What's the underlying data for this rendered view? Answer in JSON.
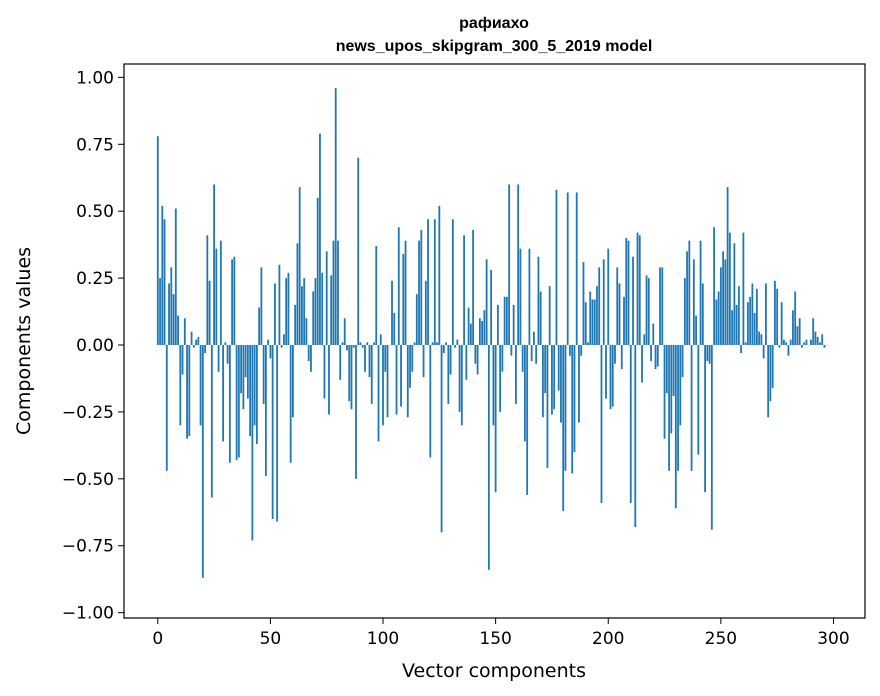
{
  "chart_data": {
    "type": "bar",
    "title": "рафиахо",
    "subtitle": "news_upos_skipgram_300_5_2019 model",
    "xlabel": "Vector components",
    "ylabel": "Components values",
    "xlim": [
      -15,
      314
    ],
    "ylim": [
      -1.02,
      1.05
    ],
    "xticks": [
      0,
      50,
      100,
      150,
      200,
      250,
      300
    ],
    "yticks": [
      -1.0,
      -0.75,
      -0.5,
      -0.25,
      0.0,
      0.25,
      0.5,
      0.75,
      1.0
    ],
    "ytick_labels": [
      "−1.00",
      "−0.75",
      "−0.50",
      "−0.25",
      "0.00",
      "0.25",
      "0.50",
      "0.75",
      "1.00"
    ],
    "bar_color": "#1f77b4",
    "values": [
      0.78,
      0.25,
      0.52,
      0.47,
      -0.47,
      0.23,
      0.29,
      0.19,
      0.51,
      0.11,
      -0.3,
      -0.11,
      0.1,
      -0.35,
      -0.34,
      0.05,
      -0.01,
      0.02,
      0.03,
      -0.3,
      -0.87,
      -0.03,
      0.41,
      0.24,
      -0.57,
      0.6,
      0.36,
      -0.1,
      0.39,
      -0.36,
      0.01,
      -0.07,
      -0.44,
      0.32,
      0.33,
      -0.43,
      -0.42,
      -0.18,
      -0.24,
      -0.12,
      -0.2,
      -0.34,
      -0.73,
      -0.3,
      -0.37,
      0.14,
      0.29,
      -0.22,
      -0.49,
      0.02,
      -0.05,
      -0.65,
      0.23,
      -0.66,
      0.3,
      -0.01,
      0.04,
      0.25,
      0.27,
      -0.44,
      -0.27,
      0.15,
      0.38,
      0.59,
      0.22,
      0.25,
      0.1,
      -0.06,
      -0.1,
      0.2,
      0.25,
      0.55,
      0.79,
      0.27,
      -0.2,
      0.35,
      -0.26,
      0.26,
      0.39,
      0.96,
      0.39,
      -0.13,
      0.01,
      0.1,
      -0.02,
      -0.21,
      -0.24,
      -0.01,
      -0.5,
      0.7,
      0.01,
      -0.01,
      -0.1,
      0.01,
      -0.12,
      -0.22,
      0.01,
      0.37,
      -0.36,
      0.04,
      -0.3,
      -0.1,
      -0.27,
      0.0,
      0.24,
      0.12,
      -0.26,
      0.44,
      -0.23,
      0.34,
      0.39,
      -0.27,
      -0.16,
      -0.1,
      0.01,
      0.19,
      0.39,
      0.43,
      -0.12,
      0.24,
      0.47,
      -0.42,
      0.01,
      0.47,
      0.01,
      0.52,
      -0.7,
      -0.03,
      0.01,
      -0.22,
      -0.11,
      0.47,
      -0.01,
      0.02,
      -0.25,
      -0.3,
      0.41,
      -0.13,
      0.14,
      0.08,
      0.43,
      -0.07,
      -0.11,
      0.1,
      0.09,
      0.13,
      0.32,
      -0.84,
      0.28,
      -0.3,
      -0.55,
      0.15,
      -0.25,
      -0.1,
      0.18,
      0.18,
      0.6,
      -0.04,
      0.15,
      -0.22,
      0.6,
      0.36,
      -0.1,
      -0.36,
      -0.56,
      0.36,
      -0.06,
      0.05,
      -0.07,
      0.33,
      0.2,
      -0.27,
      -0.18,
      -0.46,
      0.22,
      -0.26,
      -0.24,
      0.58,
      -0.17,
      -0.29,
      -0.62,
      -0.47,
      0.57,
      -0.04,
      -0.48,
      -0.4,
      0.57,
      -0.29,
      -0.04,
      0.31,
      0.16,
      0.01,
      0.2,
      0.17,
      0.17,
      0.22,
      0.29,
      -0.59,
      0.32,
      -0.2,
      0.36,
      -0.24,
      -0.23,
      -0.07,
      0.29,
      0.23,
      -0.09,
      0.18,
      0.4,
      0.39,
      -0.59,
      0.33,
      -0.68,
      0.42,
      0.41,
      -0.14,
      0.04,
      0.26,
      0.25,
      -0.06,
      0.08,
      -0.09,
      -0.08,
      0.29,
      0.29,
      -0.35,
      -0.18,
      -0.47,
      -0.33,
      -0.19,
      -0.61,
      -0.47,
      -0.3,
      -0.12,
      0.25,
      0.35,
      0.39,
      -0.47,
      0.32,
      0.11,
      -0.41,
      0.39,
      0.23,
      -0.55,
      -0.06,
      -0.07,
      -0.69,
      0.44,
      0.17,
      0.2,
      0.29,
      0.35,
      0.32,
      0.59,
      0.42,
      0.13,
      0.38,
      0.15,
      0.22,
      -0.03,
      0.42,
      0.01,
      0.16,
      0.18,
      0.23,
      0.12,
      0.21,
      0.05,
      0.04,
      -0.05,
      0.23,
      -0.27,
      -0.21,
      -0.16,
      0.24,
      0.21,
      -0.01,
      0.16,
      0.02,
      0.01,
      -0.04,
      0.02,
      0.13,
      0.2,
      0.07,
      0.1,
      -0.01,
      0.01,
      0.02,
      0.0,
      0.02,
      0.1,
      0.05,
      0.03,
      0.01,
      0.04,
      -0.01,
      0.0
    ]
  }
}
